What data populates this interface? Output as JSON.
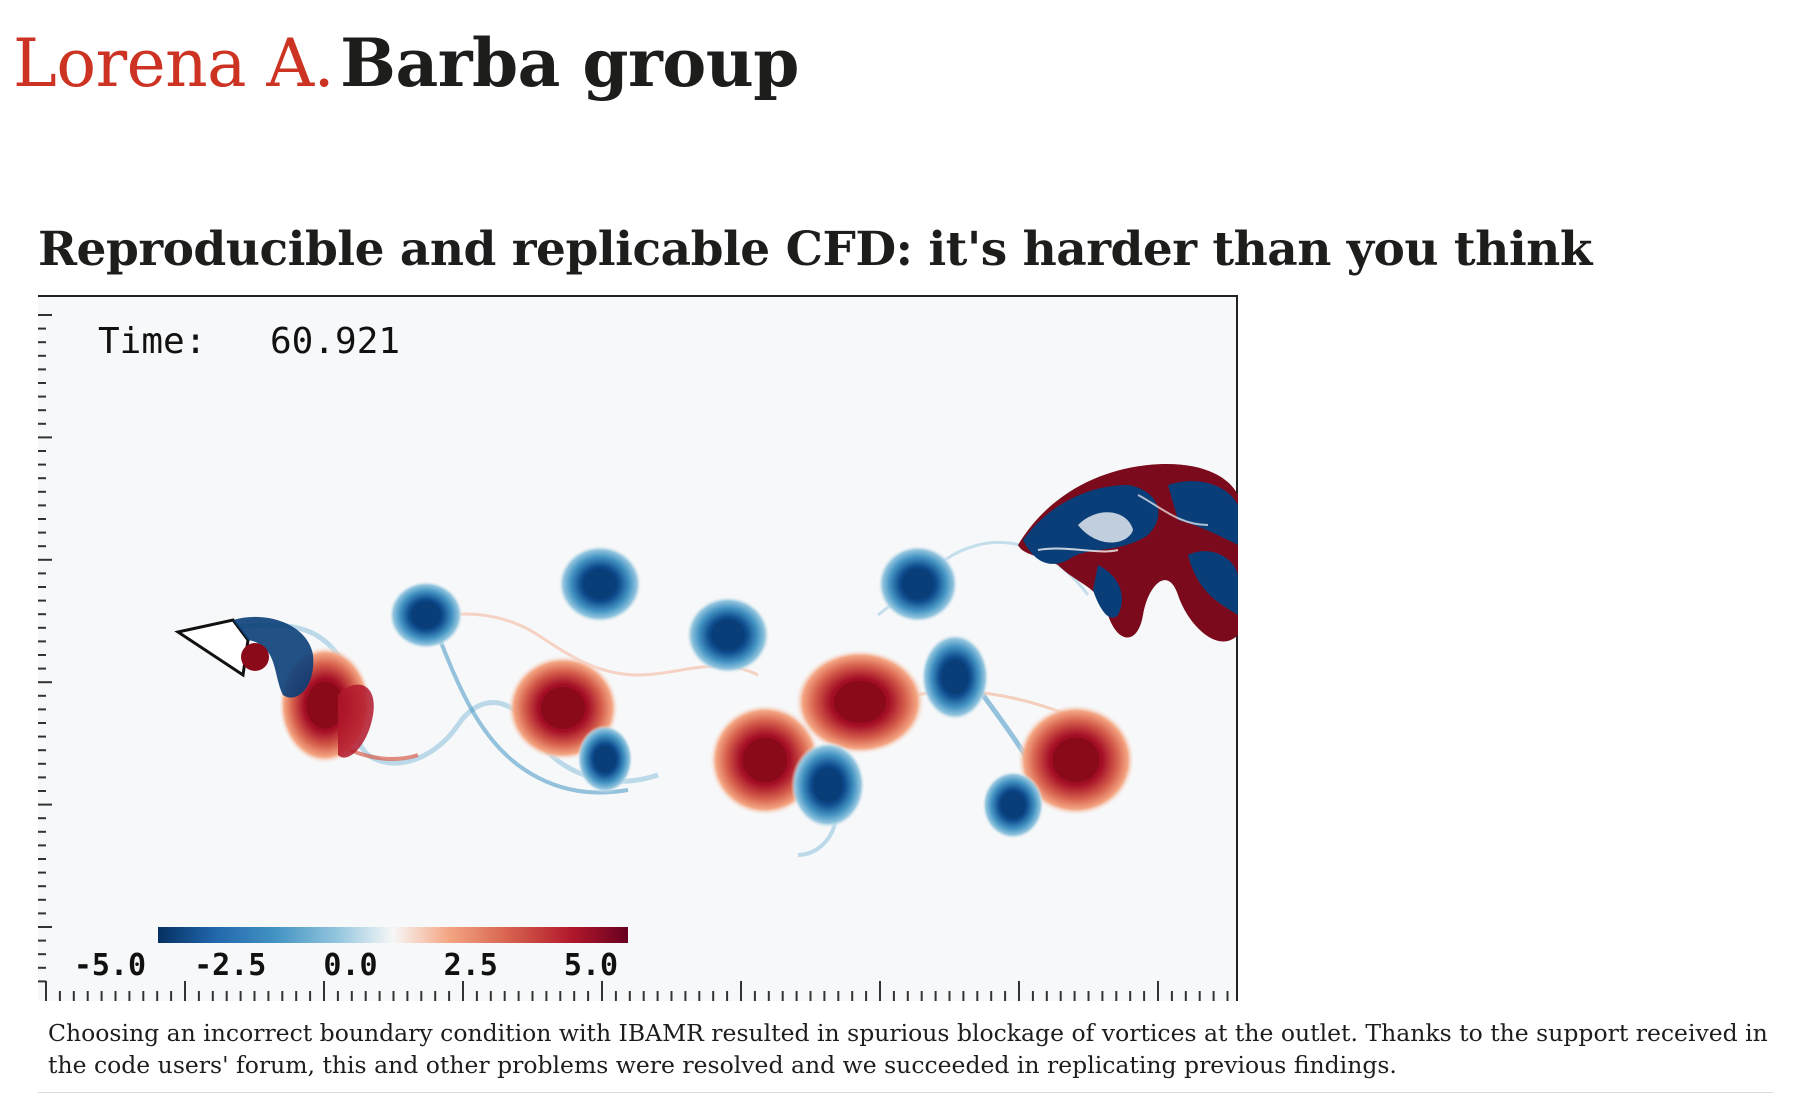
{
  "site": {
    "title_first": "Lorena A.",
    "title_last": "Barba group",
    "accent_color": "#cc3322",
    "text_color": "#1d1d1b"
  },
  "post": {
    "title": "Reproducible and replicable CFD: it's harder than you think"
  },
  "figure": {
    "time_label": "Time:",
    "time_value": "60.921",
    "colorbar": {
      "ticks": [
        "-5.0",
        "-2.5",
        "0.0",
        "2.5",
        "5.0"
      ],
      "colors": [
        "#053061",
        "#2166ac",
        "#4393c3",
        "#92c5de",
        "#f7f7f7",
        "#f4a582",
        "#d6604d",
        "#b2182b",
        "#67001f"
      ]
    },
    "positive_vortex_color": "#8b0a1a",
    "negative_vortex_color": "#0a3e78"
  },
  "caption": {
    "text": "Choosing an incorrect boundary condition with IBAMR resulted in spurious blockage of vortices at the outlet. Thanks to the support received in the code users' forum, this and other problems were resolved and we succeeded in replicating previous findings."
  }
}
